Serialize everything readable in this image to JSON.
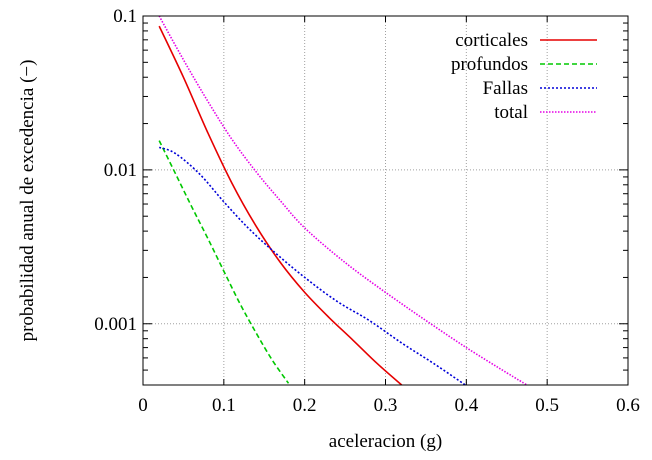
{
  "chart_data": {
    "type": "line",
    "title": "",
    "xlabel": "aceleracion (g)",
    "ylabel": "probabilidad anual de excedencia (−)",
    "xlim": [
      0,
      0.6
    ],
    "ylim": [
      0.0004,
      0.1
    ],
    "yscale": "log",
    "grid": true,
    "legend_position": "top-right",
    "x_ticks": [
      0,
      0.1,
      0.2,
      0.3,
      0.4,
      0.5,
      0.6
    ],
    "x_tick_labels": [
      "0",
      "0.1",
      "0.2",
      "0.3",
      "0.4",
      "0.5",
      "0.6"
    ],
    "y_ticks": [
      0.001,
      0.01,
      0.1
    ],
    "y_tick_labels": [
      "0.001",
      "0.01",
      "0.1"
    ],
    "series": [
      {
        "name": "corticales",
        "color": "#e60000",
        "dash": "solid",
        "x": [
          0.02,
          0.05,
          0.08,
          0.11,
          0.14,
          0.17,
          0.2,
          0.23,
          0.26,
          0.29,
          0.32
        ],
        "y": [
          0.086,
          0.04,
          0.0175,
          0.0082,
          0.0043,
          0.0025,
          0.0016,
          0.0011,
          0.00078,
          0.00055,
          0.0004
        ]
      },
      {
        "name": "profundos",
        "color": "#00c800",
        "dash": "dashed",
        "x": [
          0.02,
          0.04,
          0.06,
          0.08,
          0.1,
          0.12,
          0.14,
          0.16,
          0.18
        ],
        "y": [
          0.0155,
          0.0095,
          0.0058,
          0.0036,
          0.0022,
          0.00135,
          0.00087,
          0.00058,
          0.00041
        ]
      },
      {
        "name": "Fallas",
        "color": "#0000d8",
        "dash": "dotted",
        "x": [
          0.02,
          0.04,
          0.07,
          0.1,
          0.13,
          0.16,
          0.2,
          0.24,
          0.28,
          0.32,
          0.36,
          0.405
        ],
        "y": [
          0.014,
          0.0128,
          0.0094,
          0.0062,
          0.0042,
          0.003,
          0.002,
          0.0014,
          0.00105,
          0.00075,
          0.00055,
          0.00038
        ]
      },
      {
        "name": "total",
        "color": "#e600e6",
        "dash": "dotted-dense",
        "x": [
          0.02,
          0.05,
          0.08,
          0.11,
          0.14,
          0.17,
          0.2,
          0.25,
          0.3,
          0.35,
          0.4,
          0.45,
          0.475
        ],
        "y": [
          0.1,
          0.052,
          0.028,
          0.0158,
          0.0097,
          0.0063,
          0.0042,
          0.0025,
          0.0016,
          0.00105,
          0.0007,
          0.00048,
          0.0004
        ]
      }
    ]
  }
}
